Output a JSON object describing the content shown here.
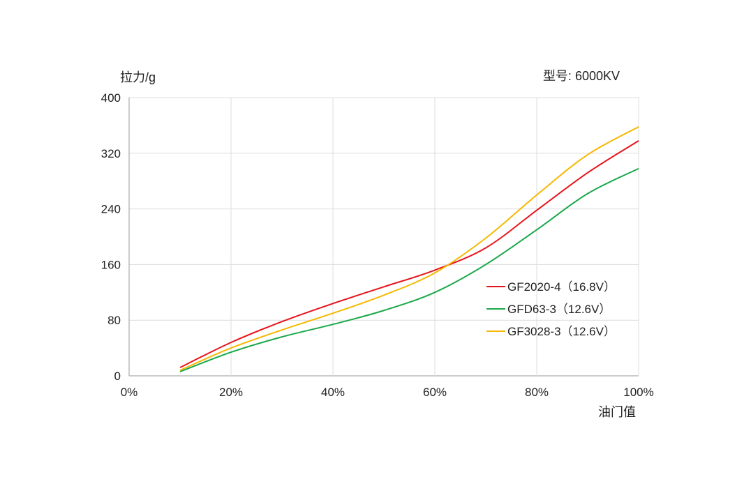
{
  "chart_data": {
    "type": "line",
    "ylabel": "拉力/g",
    "xlabel": "油门值",
    "model_label": "型号:  6000KV",
    "xlim": [
      0,
      100
    ],
    "ylim": [
      0,
      400
    ],
    "x_ticks": [
      "0%",
      "20%",
      "40%",
      "60%",
      "80%",
      "100%"
    ],
    "x_tick_values": [
      0,
      20,
      40,
      60,
      80,
      100
    ],
    "y_ticks": [
      "0",
      "80",
      "160",
      "240",
      "320",
      "400"
    ],
    "y_tick_values": [
      0,
      80,
      160,
      240,
      320,
      400
    ],
    "grid": true,
    "legend_position": "right",
    "series": [
      {
        "name": "GF2020-4（16.8V）",
        "color": "#e8141b",
        "x": [
          10,
          20,
          30,
          40,
          50,
          60,
          70,
          80,
          90,
          100
        ],
        "y": [
          12,
          48,
          78,
          104,
          128,
          152,
          184,
          238,
          292,
          338
        ]
      },
      {
        "name": "GFD63-3（12.6V）",
        "color": "#1aa84a",
        "x": [
          10,
          20,
          30,
          40,
          50,
          60,
          70,
          80,
          90,
          100
        ],
        "y": [
          6,
          34,
          56,
          74,
          94,
          120,
          160,
          210,
          262,
          298
        ]
      },
      {
        "name": "GF3028-3（12.6V）",
        "color": "#f5b800",
        "x": [
          10,
          20,
          30,
          40,
          50,
          60,
          70,
          80,
          90,
          100
        ],
        "y": [
          8,
          40,
          66,
          90,
          116,
          148,
          198,
          260,
          318,
          358
        ]
      }
    ]
  }
}
